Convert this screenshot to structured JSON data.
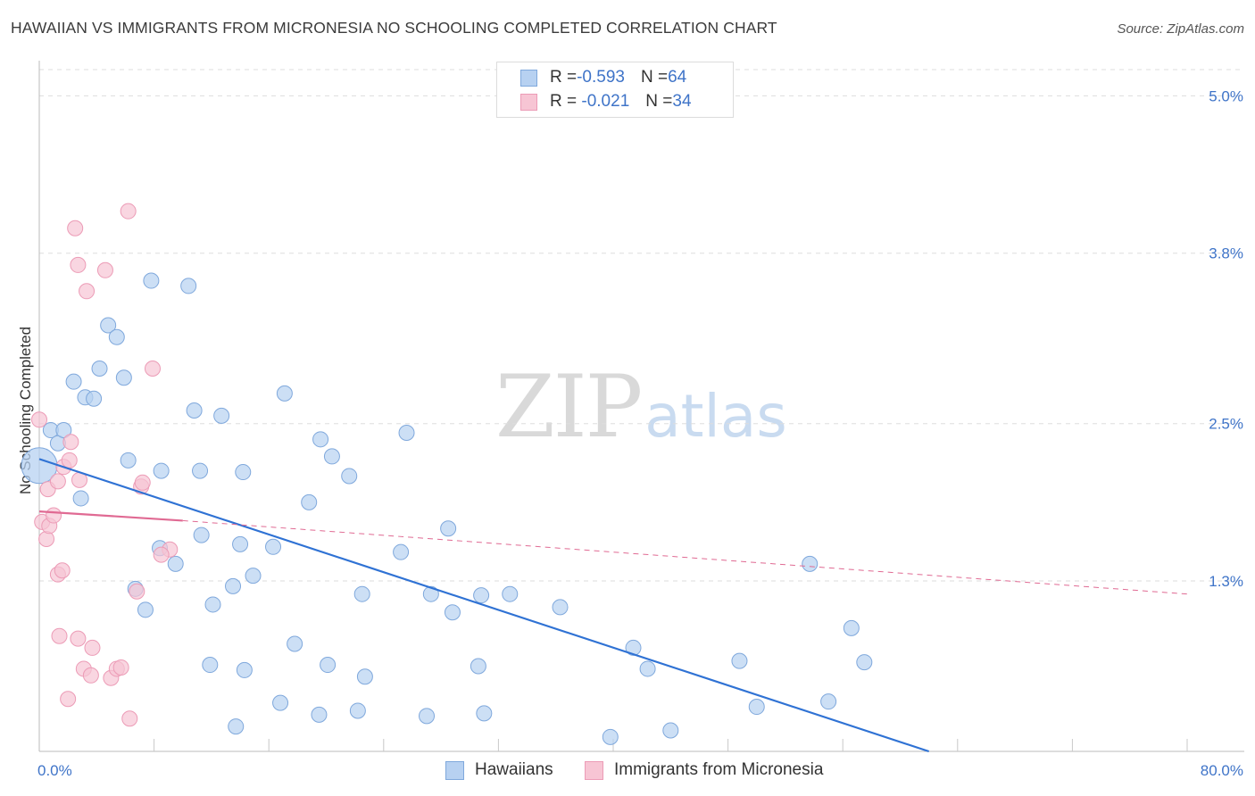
{
  "title": "HAWAIIAN VS IMMIGRANTS FROM MICRONESIA NO SCHOOLING COMPLETED CORRELATION CHART",
  "source": "Source: ZipAtlas.com",
  "watermark": {
    "zip": "ZIP",
    "atlas": "atlas"
  },
  "legend": {
    "rows": [
      {
        "r_label": "R = ",
        "r_value": "-0.593",
        "n_label": "N = ",
        "n_value": "64"
      },
      {
        "r_label": "R = ",
        "r_value": " -0.021",
        "n_label": "N = ",
        "n_value": "34"
      }
    ]
  },
  "bottom_legend": [
    "Hawaiians",
    "Immigrants from Micronesia"
  ],
  "colors": {
    "blue_fill": "#b7d1f1",
    "blue_stroke": "#7fa8dc",
    "blue_line": "#2f72d4",
    "pink_fill": "#f7c5d4",
    "pink_stroke": "#ec9bb6",
    "pink_line": "#e06a93",
    "grid": "#dddddd",
    "axis": "#bbbbbb",
    "accent_text": "#3f74c8"
  },
  "chart_data": {
    "type": "scatter",
    "title": "HAWAIIAN VS IMMIGRANTS FROM MICRONESIA NO SCHOOLING COMPLETED CORRELATION CHART",
    "xlabel": "",
    "ylabel": "No Schooling Completed",
    "xlim": [
      0,
      80
    ],
    "ylim": [
      0,
      5.2
    ],
    "x_tick_labels": [
      "0.0%",
      "80.0%"
    ],
    "y_ticks": [
      1.3,
      2.5,
      3.8,
      5.0
    ],
    "y_tick_labels": [
      "1.3%",
      "2.5%",
      "3.8%",
      "5.0%"
    ],
    "grid": true,
    "series": [
      {
        "name": "Hawaiians",
        "color": "#b7d1f1",
        "points": [
          [
            0.0,
            2.18
          ],
          [
            0.8,
            2.45
          ],
          [
            1.3,
            2.35
          ],
          [
            1.7,
            2.45
          ],
          [
            2.4,
            2.82
          ],
          [
            3.2,
            2.7
          ],
          [
            3.8,
            2.69
          ],
          [
            2.9,
            1.93
          ],
          [
            4.2,
            2.92
          ],
          [
            4.8,
            3.25
          ],
          [
            5.4,
            3.16
          ],
          [
            5.9,
            2.85
          ],
          [
            6.2,
            2.22
          ],
          [
            7.8,
            3.59
          ],
          [
            8.5,
            2.14
          ],
          [
            10.4,
            3.55
          ],
          [
            10.8,
            2.6
          ],
          [
            11.2,
            2.14
          ],
          [
            12.7,
            2.56
          ],
          [
            14.2,
            2.13
          ],
          [
            17.1,
            2.73
          ],
          [
            18.8,
            1.9
          ],
          [
            19.6,
            2.38
          ],
          [
            20.4,
            2.25
          ],
          [
            21.6,
            2.1
          ],
          [
            25.6,
            2.43
          ],
          [
            11.3,
            1.65
          ],
          [
            14.0,
            1.58
          ],
          [
            8.4,
            1.55
          ],
          [
            9.5,
            1.43
          ],
          [
            6.7,
            1.24
          ],
          [
            7.4,
            1.08
          ],
          [
            12.1,
            1.12
          ],
          [
            13.5,
            1.26
          ],
          [
            14.9,
            1.34
          ],
          [
            16.3,
            1.56
          ],
          [
            22.5,
            1.2
          ],
          [
            25.2,
            1.52
          ],
          [
            27.3,
            1.2
          ],
          [
            28.5,
            1.7
          ],
          [
            28.8,
            1.06
          ],
          [
            30.8,
            1.19
          ],
          [
            32.8,
            1.2
          ],
          [
            36.3,
            1.1
          ],
          [
            41.4,
            0.79
          ],
          [
            42.4,
            0.63
          ],
          [
            48.8,
            0.69
          ],
          [
            53.7,
            1.43
          ],
          [
            56.6,
            0.94
          ],
          [
            17.8,
            0.82
          ],
          [
            14.3,
            0.62
          ],
          [
            20.1,
            0.66
          ],
          [
            11.9,
            0.66
          ],
          [
            22.7,
            0.57
          ],
          [
            30.6,
            0.65
          ],
          [
            16.8,
            0.37
          ],
          [
            22.2,
            0.31
          ],
          [
            27.0,
            0.27
          ],
          [
            31.0,
            0.29
          ],
          [
            19.5,
            0.28
          ],
          [
            13.7,
            0.19
          ],
          [
            39.8,
            0.11
          ],
          [
            44.0,
            0.16
          ],
          [
            50.0,
            0.34
          ],
          [
            55.0,
            0.38
          ],
          [
            57.5,
            0.68
          ]
        ]
      },
      {
        "name": "Immigrants from Micronesia",
        "color": "#f7c5d4",
        "points": [
          [
            0.0,
            2.53
          ],
          [
            0.2,
            1.75
          ],
          [
            0.5,
            1.62
          ],
          [
            0.6,
            2.0
          ],
          [
            0.7,
            1.72
          ],
          [
            1.0,
            1.8
          ],
          [
            1.3,
            2.06
          ],
          [
            1.7,
            2.17
          ],
          [
            2.1,
            2.22
          ],
          [
            2.2,
            2.36
          ],
          [
            2.8,
            2.07
          ],
          [
            2.5,
            3.99
          ],
          [
            2.7,
            3.71
          ],
          [
            3.3,
            3.51
          ],
          [
            4.6,
            3.67
          ],
          [
            6.2,
            4.12
          ],
          [
            7.9,
            2.92
          ],
          [
            7.1,
            2.02
          ],
          [
            7.2,
            2.05
          ],
          [
            9.1,
            1.54
          ],
          [
            8.5,
            1.5
          ],
          [
            1.3,
            1.35
          ],
          [
            1.6,
            1.38
          ],
          [
            6.8,
            1.22
          ],
          [
            1.4,
            0.88
          ],
          [
            2.7,
            0.86
          ],
          [
            3.7,
            0.79
          ],
          [
            3.1,
            0.63
          ],
          [
            3.6,
            0.58
          ],
          [
            5.0,
            0.56
          ],
          [
            5.4,
            0.63
          ],
          [
            5.7,
            0.64
          ],
          [
            2.0,
            0.4
          ],
          [
            6.3,
            0.25
          ]
        ]
      }
    ],
    "trend_lines": [
      {
        "series": "Hawaiians",
        "style": "solid",
        "x": [
          0.0,
          62.0
        ],
        "y": [
          2.23,
          0.0
        ]
      },
      {
        "series": "Immigrants from Micronesia",
        "style": "solid",
        "x": [
          0.0,
          10.0
        ],
        "y": [
          1.83,
          1.76
        ]
      },
      {
        "series": "Immigrants from Micronesia",
        "style": "dashed",
        "x": [
          10.0,
          80.0
        ],
        "y": [
          1.76,
          1.2
        ]
      }
    ]
  }
}
